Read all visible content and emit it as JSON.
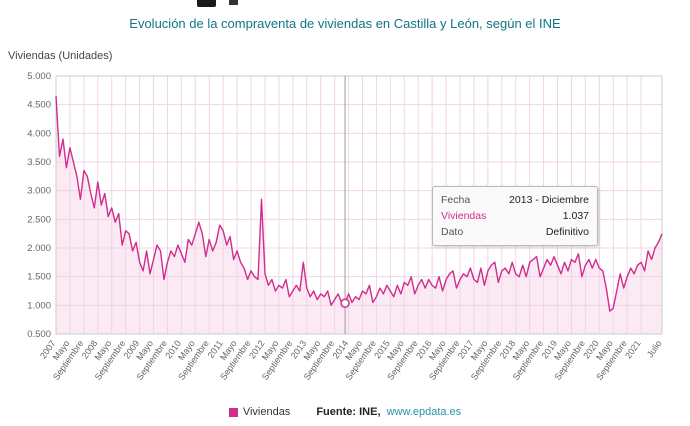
{
  "title": "Evolución de la compraventa de viviendas en Castilla y León, según el INE",
  "y_axis_label": "Viviendas (Unidades)",
  "legend": {
    "series_label": "Viviendas"
  },
  "footer": {
    "source_label": "Fuente:",
    "source_value": "INE,",
    "link": "www.epdata.es"
  },
  "tooltip": {
    "fecha_label": "Fecha",
    "fecha_value": "2013 - Diciembre",
    "series_label": "Viviendas",
    "series_value": "1.037",
    "dato_label": "Dato",
    "dato_value": "Definitivo"
  },
  "colors": {
    "accent_pink": "#d02d8c",
    "area_fill": "#f7d8eb",
    "grid_pink": "#f0d3e6",
    "title_teal": "#0f7585",
    "link_teal": "#2b93a8",
    "axis_text": "#666666",
    "cursor_gray": "#999999"
  },
  "chart_data": {
    "type": "line",
    "title": "Evolución de la compraventa de viviendas en Castilla y León, según el INE",
    "xlabel": "",
    "ylabel": "Viviendas (Unidades)",
    "x_unit": "month",
    "x_range": [
      "2007-01",
      "2021-07"
    ],
    "ylim": [
      500,
      5000
    ],
    "y_step": 500,
    "grid": true,
    "area": true,
    "legend_position": "bottom",
    "y_ticks": [
      "5.000",
      "4.500",
      "4.000",
      "3.500",
      "3.000",
      "2.500",
      "2.000",
      "1.500",
      "1.000",
      "0.500"
    ],
    "x_ticks": [
      [
        0,
        "2007"
      ],
      [
        4,
        "Mayo"
      ],
      [
        8,
        "Septiembre"
      ],
      [
        12,
        "2008"
      ],
      [
        16,
        "Mayo"
      ],
      [
        20,
        "Septiembre"
      ],
      [
        24,
        "2009"
      ],
      [
        28,
        "Mayo"
      ],
      [
        32,
        "Septiembre"
      ],
      [
        36,
        "2010"
      ],
      [
        40,
        "Mayo"
      ],
      [
        44,
        "Septiembre"
      ],
      [
        48,
        "2011"
      ],
      [
        52,
        "Mayo"
      ],
      [
        56,
        "Septiembre"
      ],
      [
        60,
        "2012"
      ],
      [
        64,
        "Mayo"
      ],
      [
        68,
        "Septiembre"
      ],
      [
        72,
        "2013"
      ],
      [
        76,
        "Mayo"
      ],
      [
        80,
        "Septiembre"
      ],
      [
        84,
        "2014"
      ],
      [
        88,
        "Mayo"
      ],
      [
        92,
        "Septiembre"
      ],
      [
        96,
        "2015"
      ],
      [
        100,
        "Mayo"
      ],
      [
        104,
        "Septiembre"
      ],
      [
        108,
        "2016"
      ],
      [
        112,
        "Mayo"
      ],
      [
        116,
        "Septiembre"
      ],
      [
        120,
        "2017"
      ],
      [
        124,
        "Mayo"
      ],
      [
        128,
        "Septiembre"
      ],
      [
        132,
        "2018"
      ],
      [
        136,
        "Mayo"
      ],
      [
        140,
        "Septiembre"
      ],
      [
        144,
        "2019"
      ],
      [
        148,
        "Mayo"
      ],
      [
        152,
        "Septiembre"
      ],
      [
        156,
        "2020"
      ],
      [
        160,
        "Mayo"
      ],
      [
        164,
        "Septiembre"
      ],
      [
        168,
        "2021"
      ],
      [
        174,
        "Julio"
      ]
    ],
    "cursor": {
      "index": 83,
      "value": 1037,
      "fecha": "2013 - Diciembre",
      "dato": "Definitivo"
    },
    "series": [
      {
        "name": "Viviendas",
        "values": [
          4650,
          3600,
          3900,
          3400,
          3750,
          3500,
          3250,
          2850,
          3350,
          3250,
          2950,
          2700,
          3150,
          2750,
          2950,
          2550,
          2700,
          2450,
          2600,
          2050,
          2300,
          2250,
          1950,
          2100,
          1750,
          1600,
          1950,
          1550,
          1800,
          2050,
          1950,
          1450,
          1750,
          1950,
          1850,
          2050,
          1900,
          1750,
          2150,
          2050,
          2250,
          2450,
          2250,
          1850,
          2150,
          1950,
          2100,
          2400,
          2300,
          2050,
          2200,
          1800,
          1950,
          1750,
          1650,
          1450,
          1600,
          1500,
          1450,
          2850,
          1550,
          1350,
          1450,
          1250,
          1350,
          1300,
          1450,
          1150,
          1250,
          1350,
          1250,
          1750,
          1300,
          1150,
          1250,
          1100,
          1200,
          1150,
          1250,
          1000,
          1100,
          1200,
          1050,
          1037,
          1200,
          1050,
          1150,
          1100,
          1250,
          1200,
          1350,
          1050,
          1150,
          1300,
          1200,
          1350,
          1250,
          1150,
          1350,
          1200,
          1400,
          1350,
          1500,
          1200,
          1350,
          1450,
          1300,
          1450,
          1350,
          1300,
          1500,
          1250,
          1450,
          1550,
          1600,
          1300,
          1450,
          1550,
          1500,
          1650,
          1450,
          1400,
          1650,
          1350,
          1600,
          1700,
          1750,
          1400,
          1600,
          1650,
          1550,
          1750,
          1550,
          1500,
          1700,
          1500,
          1750,
          1800,
          1850,
          1500,
          1650,
          1800,
          1700,
          1850,
          1700,
          1550,
          1750,
          1600,
          1800,
          1750,
          1900,
          1500,
          1700,
          1800,
          1650,
          1800,
          1650,
          1600,
          1300,
          900,
          950,
          1250,
          1550,
          1300,
          1500,
          1650,
          1550,
          1700,
          1750,
          1600,
          1950,
          1800,
          2000,
          2100,
          2250
        ]
      }
    ]
  }
}
